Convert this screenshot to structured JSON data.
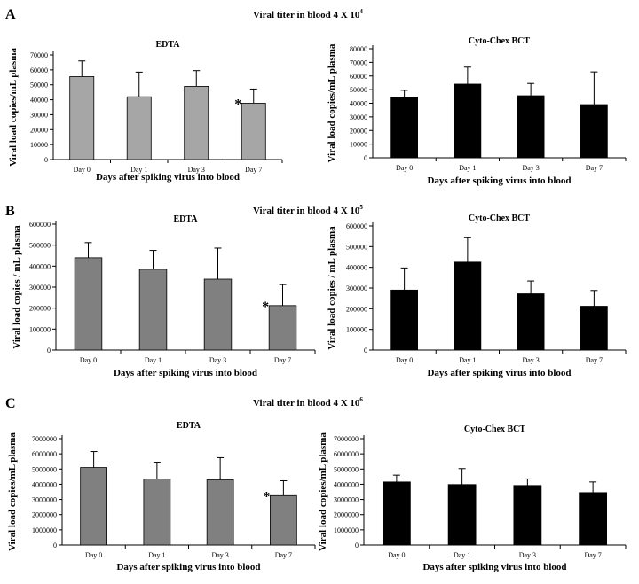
{
  "panels": [
    {
      "letter": "A",
      "title": "Viral titer in blood 4 X 10",
      "exponent": "4"
    },
    {
      "letter": "B",
      "title": "Viral titer in blood 4 X 10",
      "exponent": "5"
    },
    {
      "letter": "C",
      "title": "Viral titer in blood 4 X 10",
      "exponent": "6"
    }
  ],
  "chart_data": [
    {
      "type": "bar",
      "panel": "A",
      "title": "EDTA",
      "categories": [
        "Day 0",
        "Day 1",
        "Day 3",
        "Day 7"
      ],
      "values": [
        55500,
        42000,
        49000,
        37700
      ],
      "errors": [
        10500,
        16500,
        10500,
        9500
      ],
      "ylim": [
        0,
        70000
      ],
      "yticks": [
        0,
        10000,
        20000,
        30000,
        40000,
        50000,
        60000,
        70000
      ],
      "ytick_labels": [
        "0",
        "10000",
        "20000",
        "30000",
        "40000",
        "50000",
        "60000",
        "70000"
      ],
      "xlabel": "Days after spiking virus into blood",
      "ylabel": "Viral load copies/mL plasma",
      "bar_color": "#a6a6a6",
      "annotation": {
        "category": "Day 7",
        "text": "*"
      }
    },
    {
      "type": "bar",
      "panel": "A",
      "title": "Cyto-Chex BCT",
      "categories": [
        "Day 0",
        "Day 1",
        "Day 3",
        "Day 7"
      ],
      "values": [
        44500,
        54000,
        45500,
        39000
      ],
      "errors": [
        5000,
        12500,
        9000,
        24000
      ],
      "ylim": [
        0,
        80000
      ],
      "yticks": [
        0,
        10000,
        20000,
        30000,
        40000,
        50000,
        60000,
        70000,
        80000
      ],
      "ytick_labels": [
        "0",
        "10000",
        "20000",
        "30000",
        "40000",
        "50000",
        "60000",
        "70000",
        "80000"
      ],
      "xlabel": "Days after spiking virus into blood",
      "ylabel": "Viral load copies/mL plasma",
      "bar_color": "#000000",
      "annotation": null
    },
    {
      "type": "bar",
      "panel": "B",
      "title": "EDTA",
      "categories": [
        "Day 0",
        "Day 1",
        "Day 3",
        "Day 7"
      ],
      "values": [
        440000,
        385000,
        338000,
        212000
      ],
      "errors": [
        72000,
        90000,
        148000,
        100000
      ],
      "ylim": [
        0,
        600000
      ],
      "yticks": [
        0,
        100000,
        200000,
        300000,
        400000,
        500000,
        600000
      ],
      "ytick_labels": [
        "0",
        "100000",
        "200000",
        "300000",
        "400000",
        "500000",
        "600000"
      ],
      "xlabel": "Days after spiking virus into blood",
      "ylabel": "Viral load copies / mL plasma",
      "bar_color": "#808080",
      "annotation": {
        "category": "Day 7",
        "text": "*"
      }
    },
    {
      "type": "bar",
      "panel": "B",
      "title": "Cyto-Chex BCT",
      "categories": [
        "Day 0",
        "Day 1",
        "Day 3",
        "Day 7"
      ],
      "values": [
        290000,
        425000,
        272000,
        212000
      ],
      "errors": [
        107000,
        118000,
        62000,
        76000
      ],
      "ylim": [
        0,
        600000
      ],
      "yticks": [
        0,
        100000,
        200000,
        300000,
        400000,
        500000,
        600000
      ],
      "ytick_labels": [
        "0",
        "100000",
        "200000",
        "300000",
        "400000",
        "500000",
        "600000"
      ],
      "xlabel": "Days after spiking virus into blood",
      "ylabel": "Viral load copies / mL plasma",
      "bar_color": "#000000",
      "annotation": null
    },
    {
      "type": "bar",
      "panel": "C",
      "title": "EDTA",
      "categories": [
        "Day 0",
        "Day 1",
        "Day 3",
        "Day 7"
      ],
      "values": [
        5100000,
        4350000,
        4300000,
        3250000
      ],
      "errors": [
        1050000,
        1100000,
        1450000,
        980000
      ],
      "ylim": [
        0,
        7000000
      ],
      "yticks": [
        0,
        1000000,
        2000000,
        3000000,
        4000000,
        5000000,
        6000000,
        7000000
      ],
      "ytick_labels": [
        "0",
        "1000000",
        "2000000",
        "3000000",
        "4000000",
        "5000000",
        "6000000",
        "7000000"
      ],
      "xlabel": "Days after spiking virus into blood",
      "ylabel": "Viral load copies/mL plasma",
      "bar_color": "#808080",
      "annotation": {
        "category": "Day 7",
        "text": "*"
      }
    },
    {
      "type": "bar",
      "panel": "C",
      "title": "Cyto-Chex BCT",
      "categories": [
        "Day 0",
        "Day 1",
        "Day 3",
        "Day 7"
      ],
      "values": [
        4150000,
        3980000,
        3920000,
        3450000
      ],
      "errors": [
        450000,
        1050000,
        430000,
        700000
      ],
      "ylim": [
        0,
        7000000
      ],
      "yticks": [
        0,
        1000000,
        2000000,
        3000000,
        4000000,
        5000000,
        6000000,
        7000000
      ],
      "ytick_labels": [
        "0",
        "1000000",
        "2000000",
        "3000000",
        "4000000",
        "5000000",
        "6000000",
        "7000000"
      ],
      "xlabel": "Days after spiking virus into blood",
      "ylabel": "Viral load copies/mL plasma",
      "bar_color": "#000000",
      "annotation": null
    }
  ]
}
